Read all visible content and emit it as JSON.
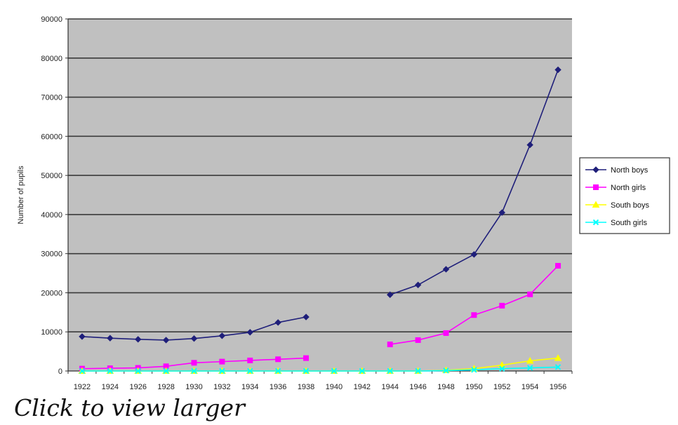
{
  "caption": "Click to view larger",
  "chart_data": {
    "type": "line",
    "title": "",
    "xlabel": "",
    "ylabel": "Number of pupils",
    "ylim": [
      0,
      90000
    ],
    "yticks": [
      0,
      10000,
      20000,
      30000,
      40000,
      50000,
      60000,
      70000,
      80000,
      90000
    ],
    "grid": true,
    "legend_position": "right",
    "categories": [
      "1922",
      "1924",
      "1926",
      "1928",
      "1930",
      "1932",
      "1934",
      "1936",
      "1938",
      "1940",
      "1942",
      "1944",
      "1946",
      "1948",
      "1950",
      "1952",
      "1954",
      "1956"
    ],
    "series": [
      {
        "name": "North boys",
        "color": "#1f1f7a",
        "marker": "diamond",
        "values": [
          8800,
          8400,
          8100,
          7900,
          8300,
          9000,
          9900,
          12400,
          13800,
          null,
          null,
          19500,
          22000,
          26000,
          29800,
          40500,
          57800,
          77000
        ]
      },
      {
        "name": "North girls",
        "color": "#ff00ff",
        "marker": "square",
        "values": [
          600,
          700,
          800,
          1200,
          2100,
          2400,
          2700,
          3000,
          3300,
          null,
          null,
          6800,
          7900,
          9700,
          14300,
          16700,
          19600,
          26900
        ]
      },
      {
        "name": "South boys",
        "color": "#ffff00",
        "marker": "triangle",
        "values": [
          0,
          0,
          0,
          0,
          0,
          0,
          0,
          0,
          0,
          0,
          0,
          0,
          0,
          200,
          600,
          1500,
          2600,
          3300
        ]
      },
      {
        "name": "South girls",
        "color": "#00ffff",
        "marker": "x",
        "values": [
          0,
          0,
          0,
          0,
          0,
          0,
          0,
          0,
          0,
          0,
          0,
          0,
          0,
          100,
          300,
          600,
          800,
          1000
        ]
      }
    ]
  }
}
